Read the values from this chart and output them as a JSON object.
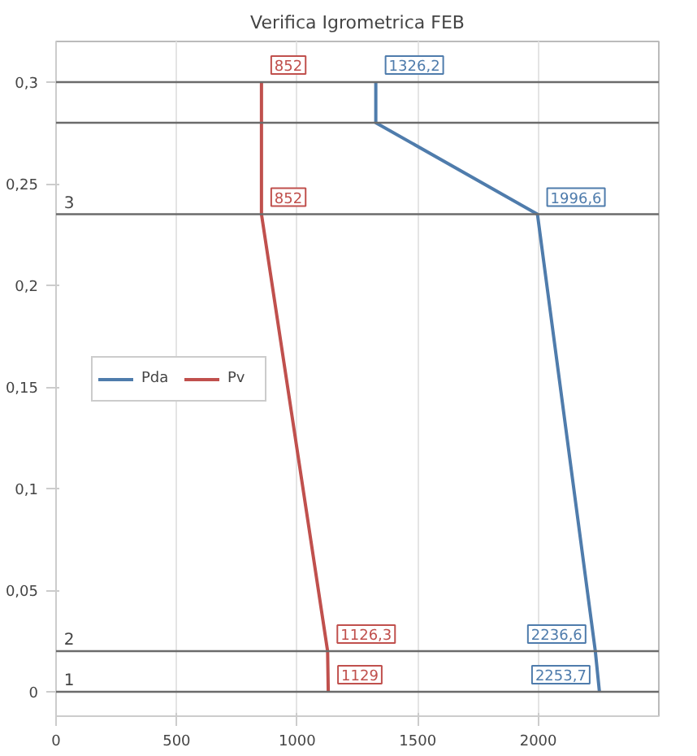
{
  "chart_data": {
    "type": "line",
    "title": "Verifica Igrometrica FEB",
    "series": [
      {
        "name": "Pda",
        "color": "#4f7cac",
        "x": [
          1326.2,
          1326.2,
          1996.6,
          2236.6,
          2253.7
        ],
        "values": [
          0.3,
          0.28,
          0.235,
          0.02,
          0
        ]
      },
      {
        "name": "Pv",
        "color": "#c0504d",
        "x": [
          852,
          852,
          852,
          1126.3,
          1129
        ],
        "values": [
          0.3,
          0.28,
          0.235,
          0.02,
          0
        ]
      }
    ],
    "xlim": [
      0,
      2500
    ],
    "ylim": [
      -0.012,
      0.32
    ],
    "xticks": [
      0,
      500,
      1000,
      1500,
      2000
    ],
    "yticks": [
      0,
      {
        "value": 0.05,
        "label": "0,05"
      },
      {
        "value": 0.1,
        "label": "0,1"
      },
      {
        "value": 0.15,
        "label": "0,15"
      },
      {
        "value": 0.2,
        "label": "0,2"
      },
      {
        "value": 0.25,
        "label": "0,25"
      },
      {
        "value": 0.3,
        "label": "0,3"
      }
    ],
    "ref_lines": [
      {
        "axis": "y",
        "value": 0,
        "color": "#6b6b6b"
      },
      {
        "axis": "y",
        "value": 0.02,
        "color": "#6b6b6b"
      },
      {
        "axis": "y",
        "value": 0.235,
        "color": "#6b6b6b"
      },
      {
        "axis": "y",
        "value": 0.28,
        "color": "#6b6b6b"
      },
      {
        "axis": "y",
        "value": 0.3,
        "color": "#6b6b6b"
      }
    ],
    "annotations": [
      {
        "text": "1326,2",
        "x": 1326.2,
        "y": 0.3
      },
      {
        "text": "1996,6",
        "x": 1996.6,
        "y": 0.235
      },
      {
        "text": "2236,6",
        "x": 2236.6,
        "y": 0.02
      },
      {
        "text": "2253,7",
        "x": 2253.7,
        "y": 0
      },
      {
        "text": "852",
        "x": 852,
        "y": 0.3
      },
      {
        "text": "852",
        "x": 852,
        "y": 0.235
      },
      {
        "text": "1126,3",
        "x": 1126.3,
        "y": 0.02
      },
      {
        "text": "1129",
        "x": 1129,
        "y": 0
      },
      {
        "text": "1",
        "x": 0,
        "y": 0
      },
      {
        "text": "2",
        "x": 0,
        "y": 0.02
      },
      {
        "text": "3",
        "x": 0,
        "y": 0.235
      }
    ],
    "grid": "x",
    "legend": "left"
  }
}
